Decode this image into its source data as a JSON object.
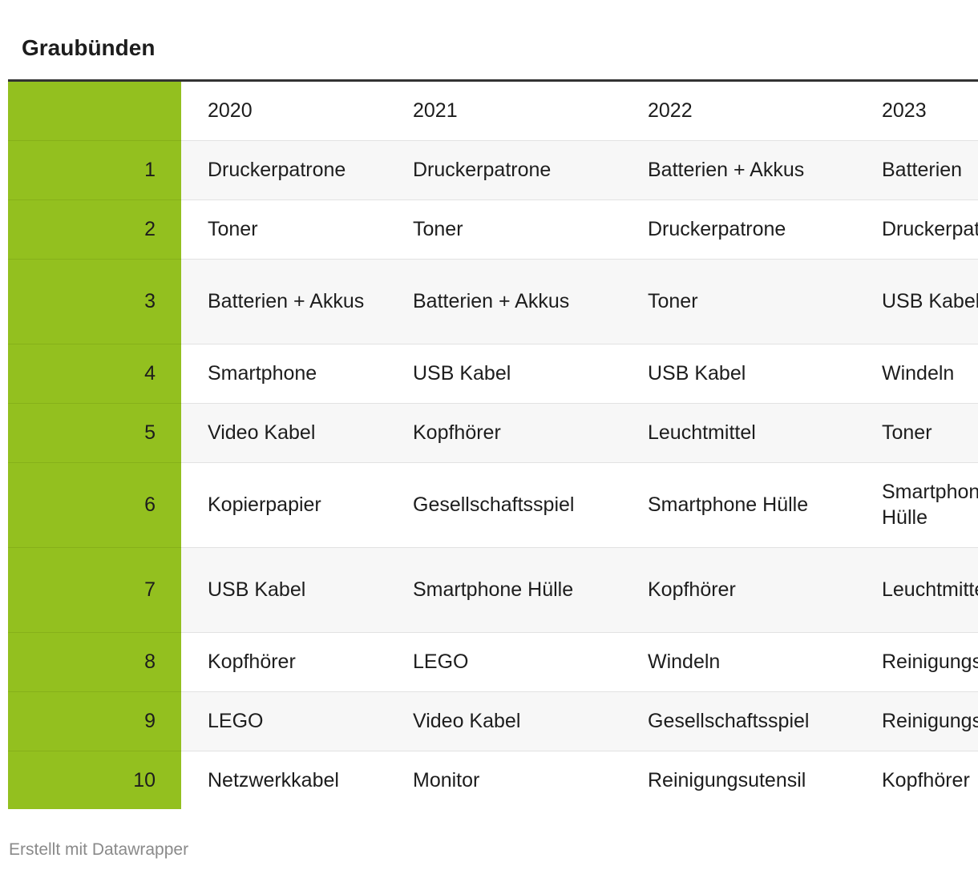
{
  "title": "Graubünden",
  "table": {
    "header": [
      "2020",
      "2021",
      "2022",
      "2023"
    ],
    "rows": [
      {
        "rank": "1",
        "cells": [
          "Druckerpatrone",
          "Druckerpatrone",
          "Batterien + Akkus",
          "Batterien"
        ]
      },
      {
        "rank": "2",
        "cells": [
          "Toner",
          "Toner",
          "Druckerpatrone",
          "Druckerpatrone"
        ]
      },
      {
        "rank": "3",
        "cells": [
          "Batterien + Akkus",
          "Batterien + Akkus",
          "Toner",
          "USB Kabel"
        ]
      },
      {
        "rank": "4",
        "cells": [
          "Smartphone",
          "USB Kabel",
          "USB Kabel",
          "Windeln"
        ]
      },
      {
        "rank": "5",
        "cells": [
          "Video Kabel",
          "Kopfhörer",
          "Leuchtmittel",
          "Toner"
        ]
      },
      {
        "rank": "6",
        "cells": [
          "Kopierpapier",
          "Gesellschaftsspiel",
          "Smartphone Hülle",
          "Smartphone Hülle"
        ]
      },
      {
        "rank": "7",
        "cells": [
          "USB Kabel",
          "Smartphone Hülle",
          "Kopfhörer",
          "Leuchtmittel"
        ]
      },
      {
        "rank": "8",
        "cells": [
          "Kopfhörer",
          "LEGO",
          "Windeln",
          "Reinigungsutensil"
        ]
      },
      {
        "rank": "9",
        "cells": [
          "LEGO",
          "Video Kabel",
          "Gesellschaftsspiel",
          "Reinigungsmittel"
        ]
      },
      {
        "rank": "10",
        "cells": [
          "Netzwerkkabel",
          "Monitor",
          "Reinigungsutensil",
          "Kopfhörer"
        ]
      }
    ]
  },
  "footer": "Erstellt mit Datawrapper"
}
